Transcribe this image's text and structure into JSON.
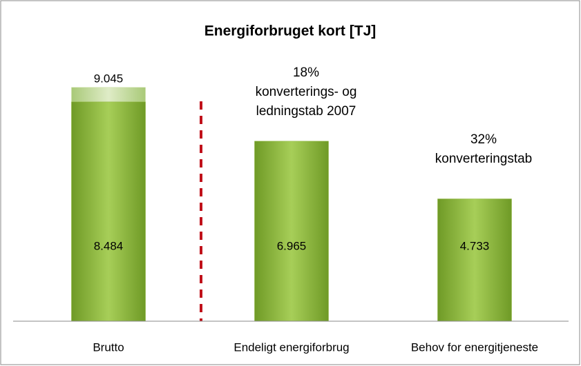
{
  "chart_data": {
    "type": "bar",
    "title": "Energiforbruget kort [TJ]",
    "categories": [
      "Brutto",
      "Endeligt energiforbrug",
      "Behov for energitjeneste"
    ],
    "series": [
      {
        "color": "#c6dd9b",
        "values": [
          9045,
          null,
          null
        ],
        "value_labels": [
          "9.045",
          null,
          null
        ]
      },
      {
        "color": "#8db53c",
        "values": [
          8484,
          6965,
          4733
        ],
        "value_labels": [
          "8.484",
          "6.965",
          "4.733"
        ]
      }
    ],
    "ylim": [
      0,
      10000
    ],
    "annotations": [
      "18%",
      "konverterings- og",
      "ledningstab 2007",
      "32%",
      "konverteringstab"
    ]
  }
}
